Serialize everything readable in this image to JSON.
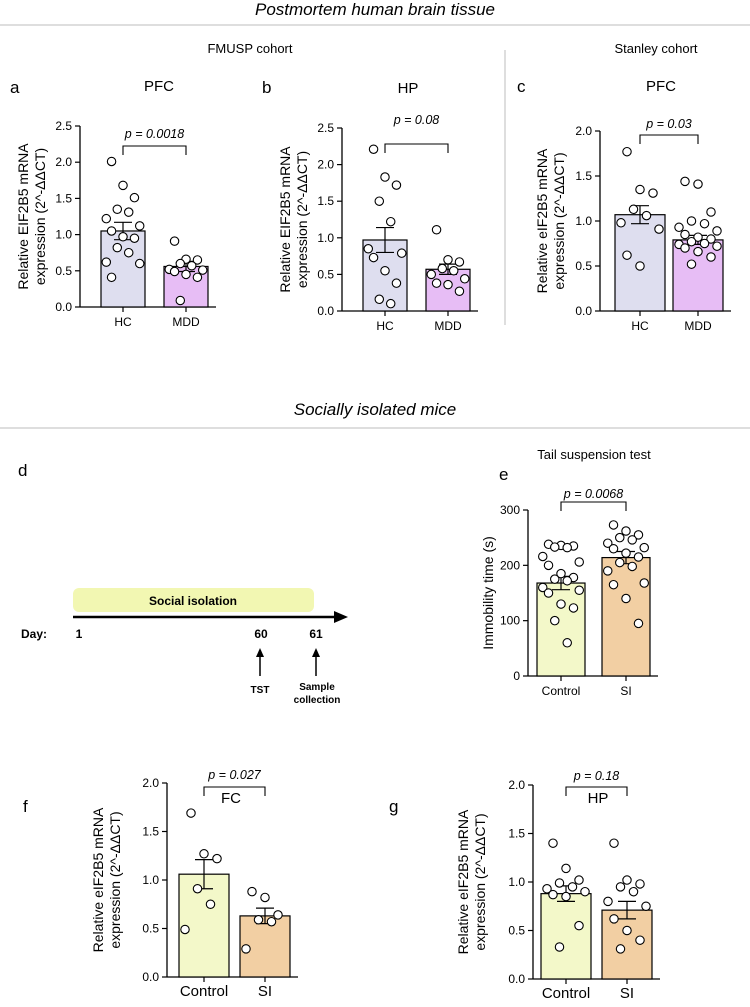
{
  "headers": {
    "top_section": "Postmortem human brain tissue",
    "bottom_section": "Socially isolated mice",
    "cohort_fmusp": "FMUSP cohort",
    "cohort_stanley": "Stanley cohort"
  },
  "timeline": {
    "panel_label": "d",
    "bar_label": "Social isolation",
    "day_prefix": "Day:",
    "days": [
      "1",
      "60",
      "61"
    ],
    "events": [
      "TST",
      "Sample",
      "collection"
    ],
    "bar_color": "#f2f7b2"
  },
  "colors": {
    "HC": "#dedeef",
    "MDD": "#e7bdf5",
    "Control": "#f3f8c9",
    "SI": "#f2cfa3"
  },
  "chart_data": [
    {
      "id": "a",
      "type": "bar",
      "panel_label": "a",
      "title": "PFC",
      "ylabel": [
        "Relative EIF2B5 mRNA",
        "expression (2^-ΔΔCT)"
      ],
      "categories": [
        "HC",
        "MDD"
      ],
      "values": [
        1.05,
        0.56
      ],
      "errors": [
        0.12,
        0.07
      ],
      "points": [
        [
          2.01,
          1.68,
          1.51,
          1.35,
          1.31,
          1.22,
          1.12,
          1.05,
          0.97,
          0.95,
          0.82,
          0.75,
          0.62,
          0.6,
          0.41
        ],
        [
          0.91,
          0.66,
          0.65,
          0.6,
          0.57,
          0.52,
          0.51,
          0.49,
          0.45,
          0.41,
          0.09
        ]
      ],
      "ylim": [
        0,
        2.5
      ],
      "yticks": [
        0,
        0.5,
        1,
        1.5,
        2,
        2.5
      ],
      "yticklabels": [
        "0.0",
        "0.5",
        "1.0",
        "1.5",
        "2.0",
        "2.5"
      ],
      "pvalue": "p = 0.0018"
    },
    {
      "id": "b",
      "type": "bar",
      "panel_label": "b",
      "title": "HP",
      "ylabel": [
        "Relative EIF2B5 mRNA",
        "expression (2^-ΔΔCT)"
      ],
      "categories": [
        "HC",
        "MDD"
      ],
      "values": [
        0.97,
        0.57
      ],
      "errors": [
        0.17,
        0.07
      ],
      "points": [
        [
          2.21,
          1.83,
          1.72,
          1.5,
          1.22,
          0.85,
          0.79,
          0.73,
          0.55,
          0.38,
          0.16,
          0.1
        ],
        [
          1.11,
          0.7,
          0.67,
          0.58,
          0.55,
          0.5,
          0.44,
          0.38,
          0.36,
          0.27
        ]
      ],
      "ylim": [
        0,
        2.5
      ],
      "yticks": [
        0,
        0.5,
        1,
        1.5,
        2,
        2.5
      ],
      "yticklabels": [
        "0.0",
        "0.5",
        "1.0",
        "1.5",
        "2.0",
        "2.5"
      ],
      "pvalue": "p = 0.08"
    },
    {
      "id": "c",
      "type": "bar",
      "panel_label": "c",
      "title": "PFC",
      "ylabel": [
        "Relative eIF2B5 mRNA",
        "expression (2^-ΔΔCT)"
      ],
      "categories": [
        "HC",
        "MDD"
      ],
      "values": [
        1.07,
        0.79
      ],
      "errors": [
        0.1,
        0.05
      ],
      "points": [
        [
          1.77,
          1.35,
          1.31,
          1.13,
          1.06,
          0.98,
          0.91,
          0.62,
          0.5
        ],
        [
          1.44,
          1.41,
          1.1,
          1.0,
          0.97,
          0.93,
          0.89,
          0.85,
          0.82,
          0.8,
          0.77,
          0.75,
          0.74,
          0.72,
          0.7,
          0.66,
          0.6,
          0.52
        ]
      ],
      "ylim": [
        0,
        2
      ],
      "yticks": [
        0,
        0.5,
        1,
        1.5,
        2
      ],
      "yticklabels": [
        "0.0",
        "0.5",
        "1.0",
        "1.5",
        "2.0"
      ],
      "pvalue": "p = 0.03"
    },
    {
      "id": "e",
      "type": "bar",
      "panel_label": "e",
      "title": "Tail suspension test",
      "ylabel": [
        "Immobility time (s)"
      ],
      "categories": [
        "Control",
        "SI"
      ],
      "values": [
        168,
        214
      ],
      "errors": [
        12,
        11
      ],
      "points": [
        [
          238,
          236,
          235,
          233,
          232,
          216,
          206,
          200,
          185,
          178,
          175,
          172,
          160,
          155,
          150,
          130,
          123,
          100,
          60
        ],
        [
          273,
          262,
          255,
          250,
          246,
          240,
          232,
          230,
          222,
          215,
          205,
          198,
          190,
          168,
          165,
          140,
          95
        ]
      ],
      "ylim": [
        0,
        300
      ],
      "yticks": [
        0,
        100,
        200,
        300
      ],
      "yticklabels": [
        "0",
        "100",
        "200",
        "300"
      ],
      "pvalue": "p = 0.0068"
    },
    {
      "id": "f",
      "type": "bar",
      "panel_label": "f",
      "title": "FC",
      "ylabel": [
        "Relative eIF2B5 mRNA",
        "expression (2^-ΔΔCT)"
      ],
      "categories": [
        "Control",
        "SI"
      ],
      "values": [
        1.06,
        0.63
      ],
      "errors": [
        0.15,
        0.08
      ],
      "points": [
        [
          1.69,
          1.27,
          1.22,
          0.91,
          0.75,
          0.49
        ],
        [
          0.88,
          0.82,
          0.64,
          0.59,
          0.57,
          0.29
        ]
      ],
      "ylim": [
        0,
        2
      ],
      "yticks": [
        0,
        0.5,
        1,
        1.5,
        2
      ],
      "yticklabels": [
        "0.0",
        "0.5",
        "1.0",
        "1.5",
        "2.0"
      ],
      "pvalue": "p = 0.027"
    },
    {
      "id": "g",
      "type": "bar",
      "panel_label": "g",
      "title": "HP",
      "ylabel": [
        "Relative eIF2B5 mRNA",
        "expression (2^-ΔΔCT)"
      ],
      "categories": [
        "Control",
        "SI"
      ],
      "values": [
        0.88,
        0.71
      ],
      "errors": [
        0.08,
        0.09
      ],
      "points": [
        [
          1.4,
          1.14,
          1.02,
          0.99,
          0.95,
          0.93,
          0.9,
          0.87,
          0.85,
          0.55,
          0.33
        ],
        [
          1.4,
          1.02,
          0.98,
          0.95,
          0.9,
          0.8,
          0.75,
          0.62,
          0.5,
          0.4,
          0.31
        ]
      ],
      "ylim": [
        0,
        2
      ],
      "yticks": [
        0,
        0.5,
        1,
        1.5,
        2
      ],
      "yticklabels": [
        "0.0",
        "0.5",
        "1.0",
        "1.5",
        "2.0"
      ],
      "pvalue": "p = 0.18"
    }
  ]
}
